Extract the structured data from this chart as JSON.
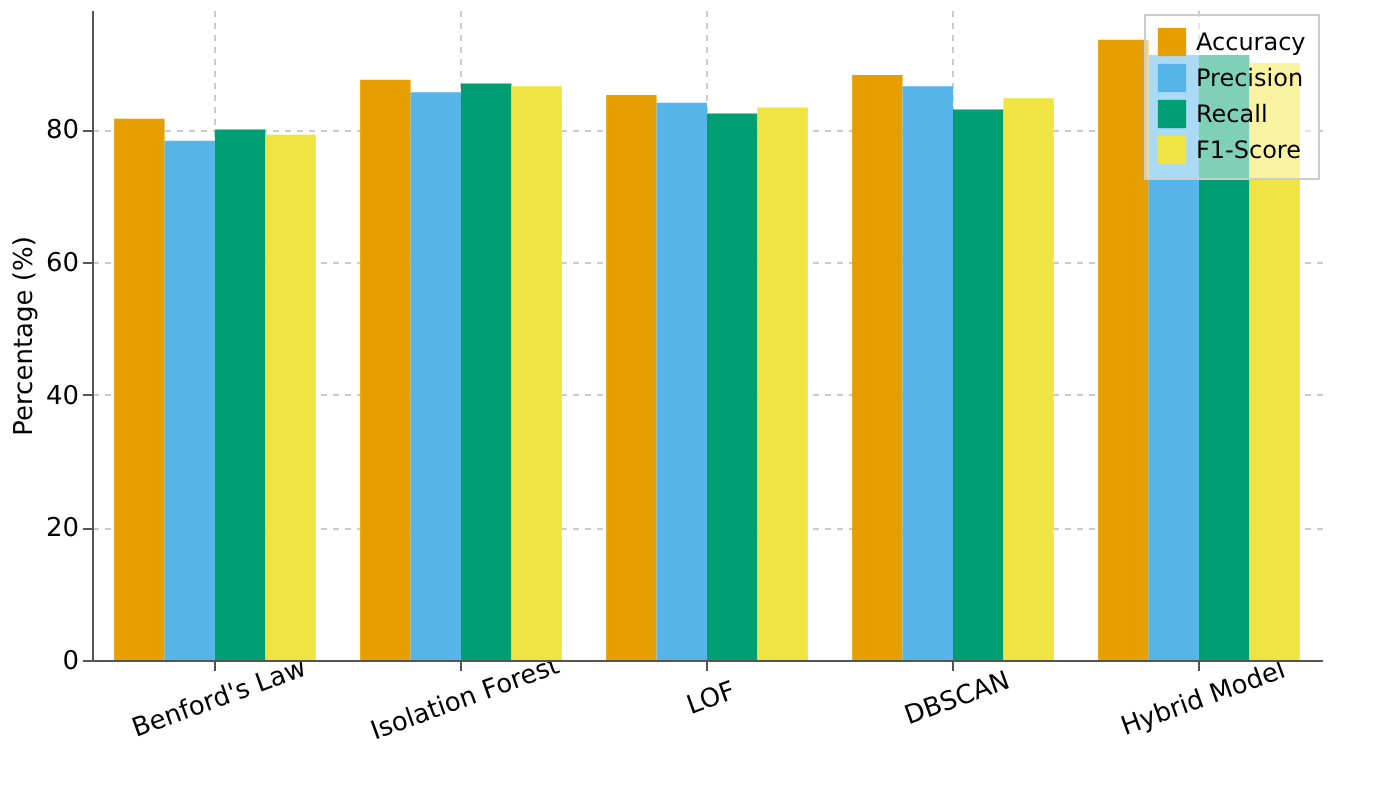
{
  "chart_data": {
    "type": "bar",
    "ylabel": "Percentage (%)",
    "categories": [
      "Benford's Law",
      "Isolation Forest",
      "LOF",
      "DBSCAN",
      "Hybrid Model"
    ],
    "series": [
      {
        "name": "Accuracy",
        "color": "#e69f00",
        "values": [
          81.6,
          87.5,
          85.2,
          88.2,
          93.5
        ]
      },
      {
        "name": "Precision",
        "color": "#56b4e9",
        "values": [
          78.3,
          85.6,
          84.0,
          86.5,
          91.2
        ]
      },
      {
        "name": "Recall",
        "color": "#009e73",
        "values": [
          80.0,
          86.9,
          82.4,
          83.0,
          91.2
        ]
      },
      {
        "name": "F1-Score",
        "color": "#f0e442",
        "values": [
          79.2,
          86.5,
          83.3,
          84.7,
          90.0
        ]
      }
    ],
    "ylim": [
      0,
      98
    ],
    "yticks": [
      0,
      20,
      40,
      60,
      80
    ],
    "grid": true,
    "legend": "top right"
  }
}
